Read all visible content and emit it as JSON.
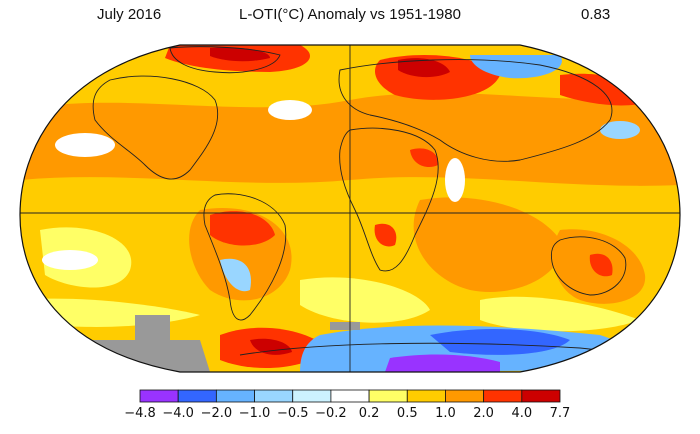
{
  "header": {
    "date_label": "July 2016",
    "title": "L-OTI(°C) Anomaly vs 1951-1980",
    "global_mean": "0.83"
  },
  "legend": {
    "ticks": [
      "−4.8",
      "−4.0",
      "−2.0",
      "−1.0",
      "−0.5",
      "−0.2",
      "0.2",
      "0.5",
      "1.0",
      "2.0",
      "4.0",
      "7.7"
    ],
    "colors": [
      "#9933ff",
      "#3366ff",
      "#66b3ff",
      "#99d6ff",
      "#ccf2ff",
      "#ffffff",
      "#ffff66",
      "#ffcc00",
      "#ff9900",
      "#ff3300",
      "#cc0000"
    ]
  }
}
